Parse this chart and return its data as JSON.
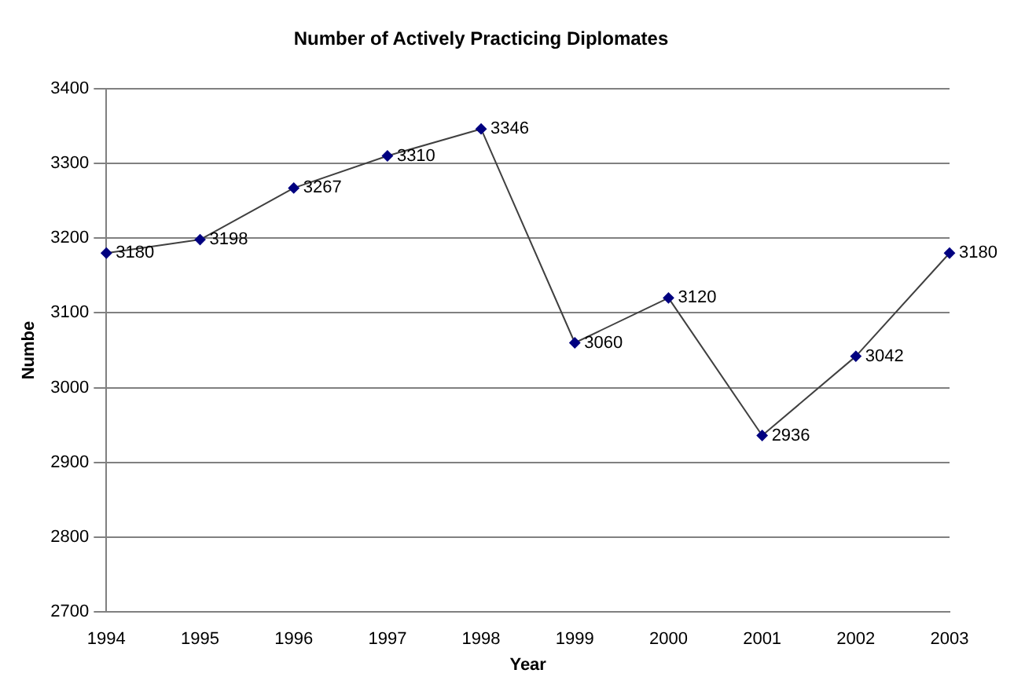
{
  "chart_data": {
    "type": "line",
    "title": "Number of Actively Practicing Diplomates",
    "xlabel": "Year",
    "ylabel": "Numbe",
    "categories": [
      "1994",
      "1995",
      "1996",
      "1997",
      "1998",
      "1999",
      "2000",
      "2001",
      "2002",
      "2003"
    ],
    "series": [
      {
        "color": "#000080",
        "values": [
          3180,
          3198,
          3267,
          3310,
          3346,
          3060,
          3120,
          2936,
          3042,
          3180
        ]
      }
    ],
    "ylim": [
      2700,
      3400
    ],
    "yticks": [
      2700,
      2800,
      2900,
      3000,
      3100,
      3200,
      3300,
      3400
    ],
    "grid": "y",
    "marker": "diamond",
    "data_labels": true,
    "legend": false
  }
}
